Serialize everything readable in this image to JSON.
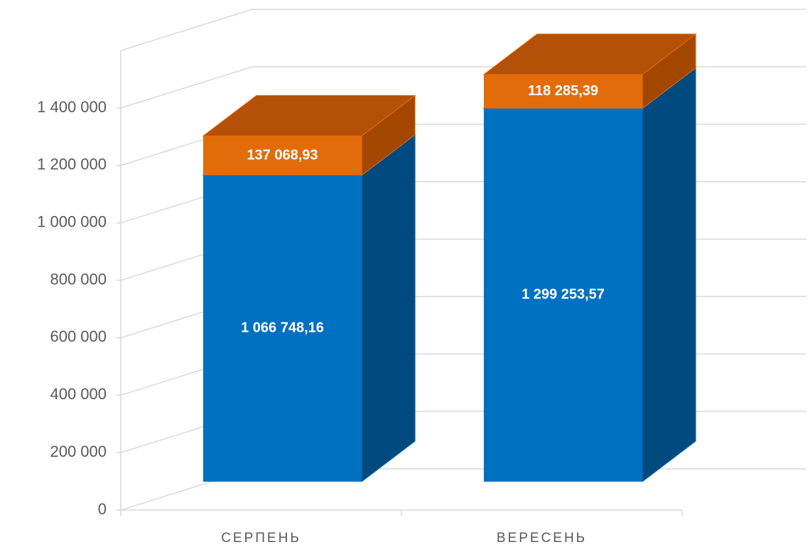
{
  "chart_data": {
    "type": "bar3d_stacked",
    "categories": [
      "СЕРПЕНЬ",
      "ВЕРЕСЕНЬ"
    ],
    "series": [
      {
        "color": "#0070c0",
        "side_color": "#004a80",
        "top_color": "#005a9e",
        "values": [
          1066748.16,
          1299253.57
        ],
        "value_labels": [
          "1 066 748,16",
          "1 299 253,57"
        ]
      },
      {
        "color": "#e36c0a",
        "side_color": "#a34700",
        "top_color": "#b55008",
        "values": [
          137068.93,
          118285.39
        ],
        "value_labels": [
          "137 068,93",
          "118 285,39"
        ]
      }
    ],
    "ylim": [
      0,
      1600000
    ],
    "yticks": [
      0,
      {
        "value": 200000,
        "label": "200 000"
      },
      {
        "value": 400000,
        "label": "400 000"
      },
      {
        "value": 600000,
        "label": "600 000"
      },
      {
        "value": 800000,
        "label": "800 000"
      },
      {
        "value": 1000000,
        "label": "1 000 000"
      },
      {
        "value": 1200000,
        "label": "1 200 000"
      },
      {
        "value": 1400000,
        "label": "1 400 000"
      }
    ],
    "grid": true
  }
}
